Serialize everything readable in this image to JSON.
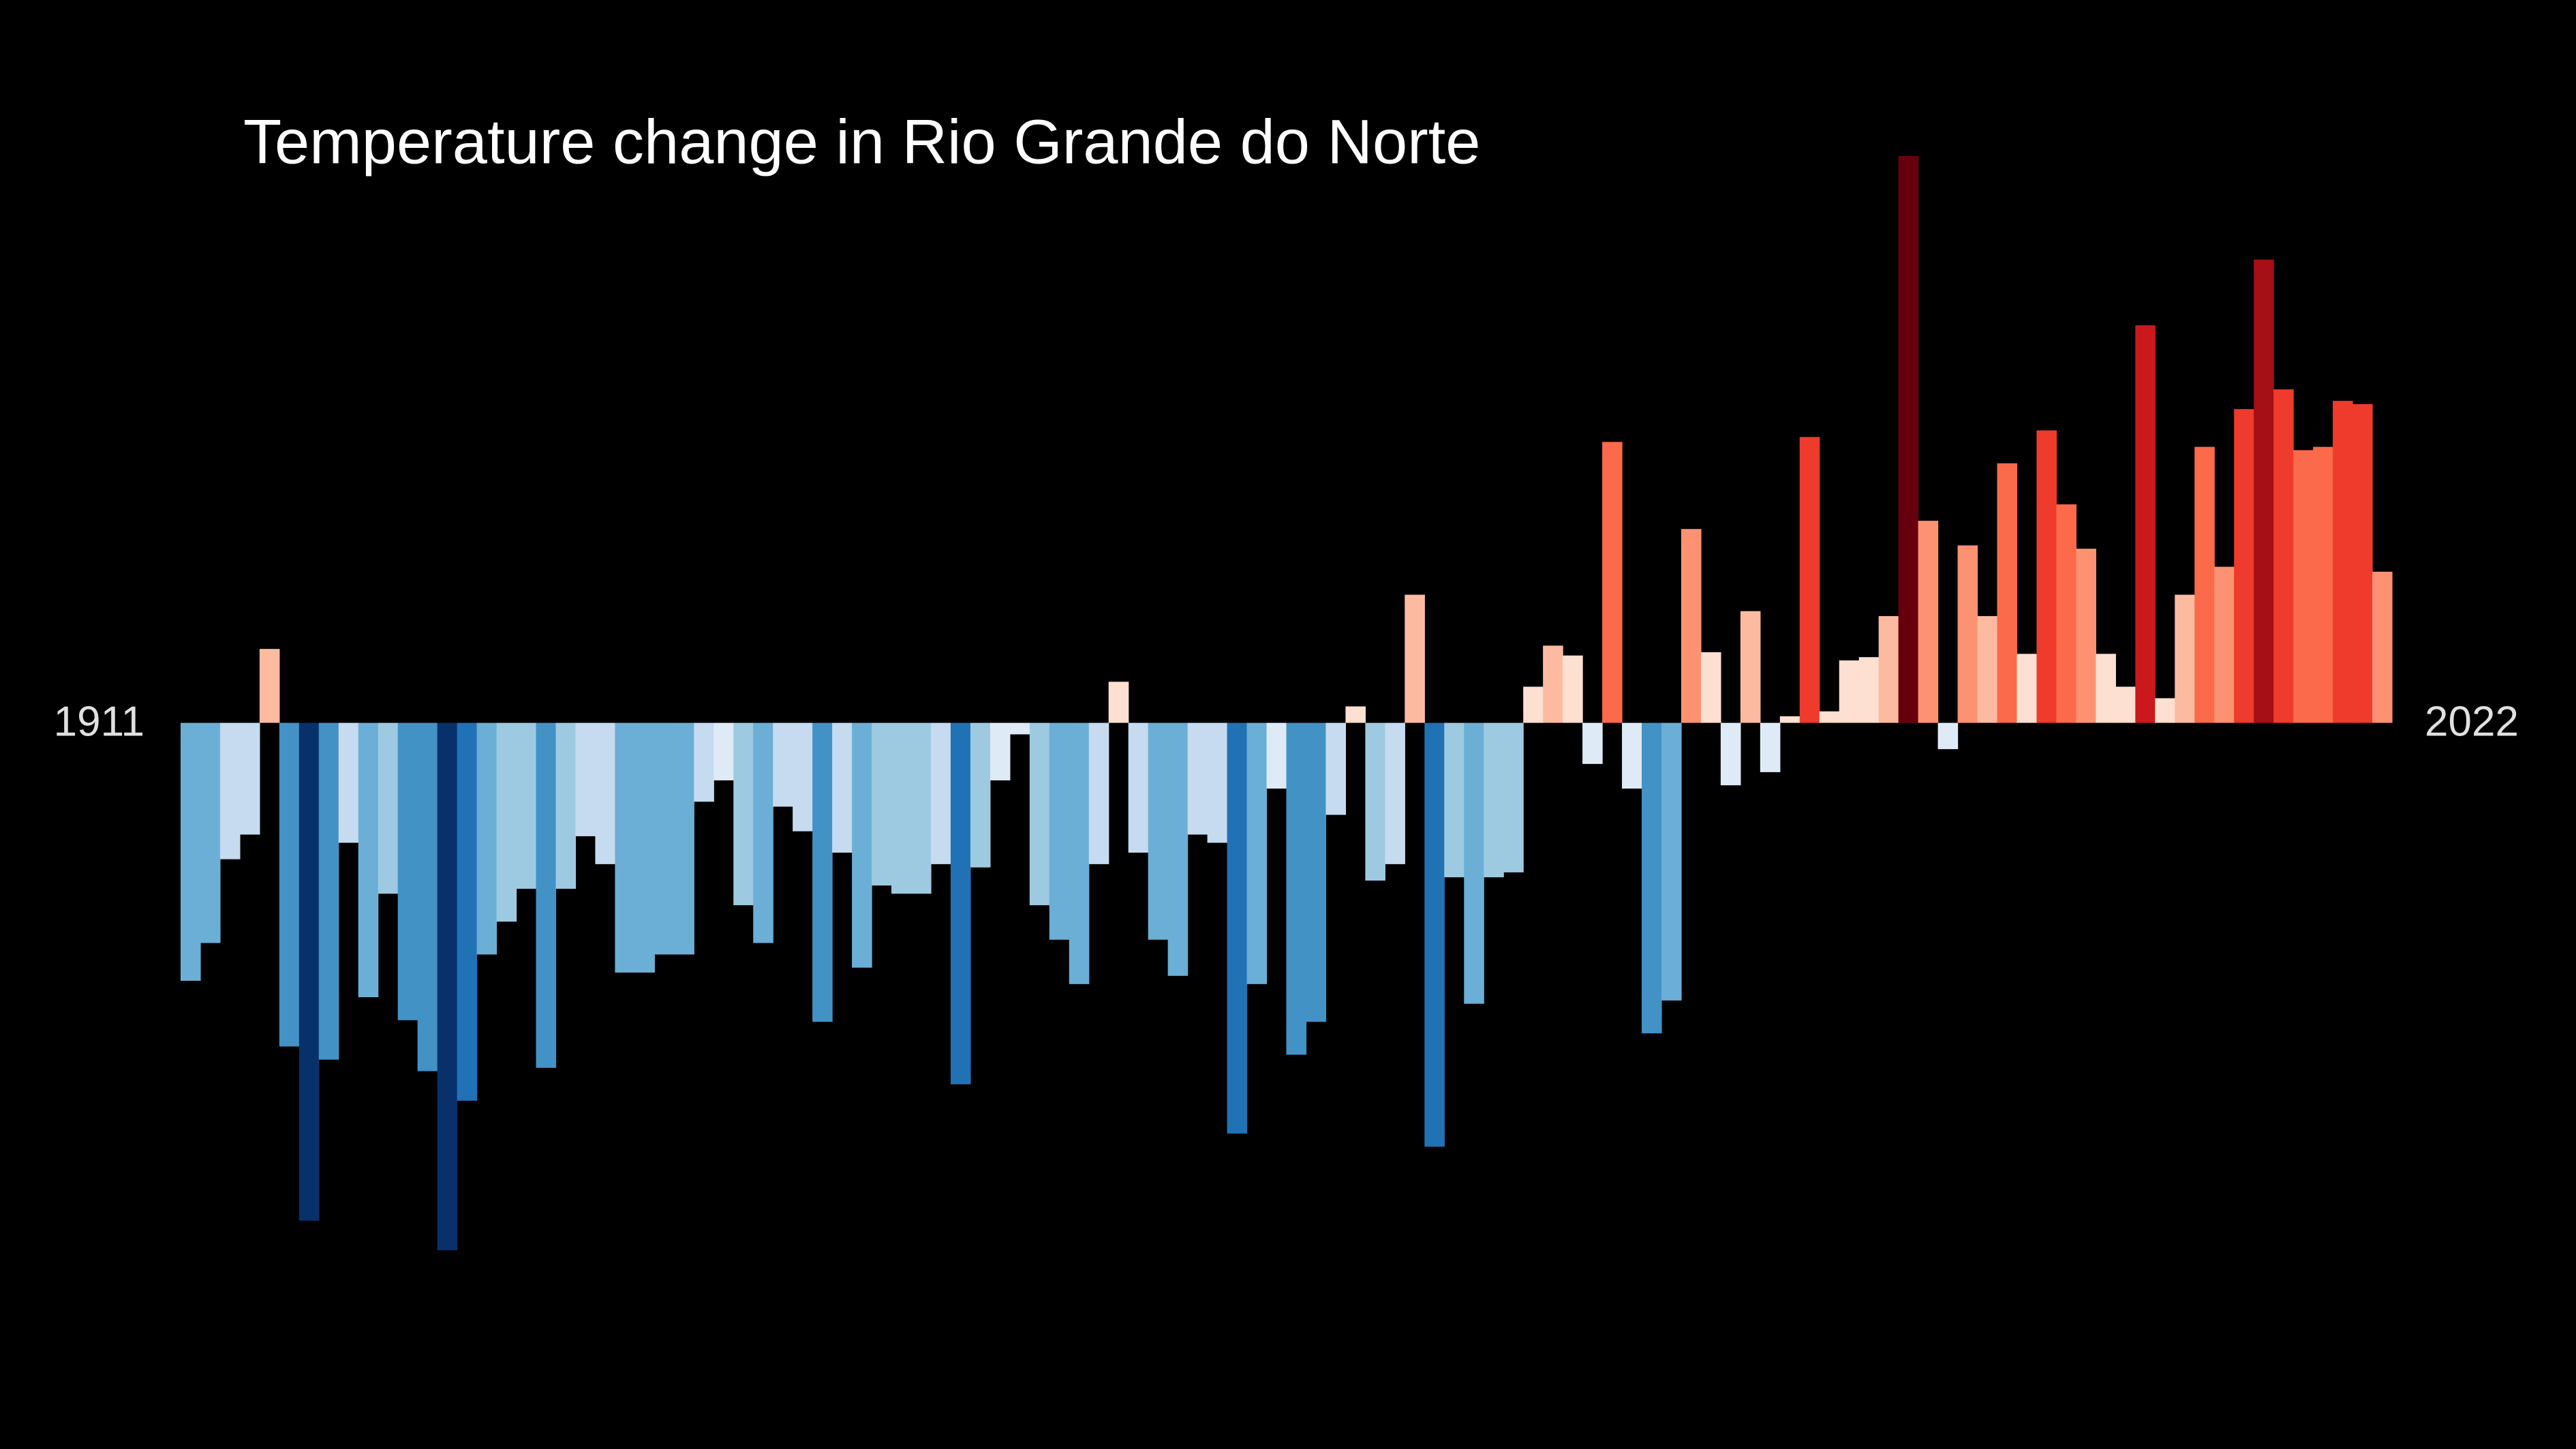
{
  "chart_data": {
    "type": "bar",
    "title": "Temperature change in Rio Grande do Norte",
    "x": [
      1911,
      1912,
      1913,
      1914,
      1915,
      1916,
      1917,
      1918,
      1919,
      1920,
      1921,
      1922,
      1923,
      1924,
      1925,
      1926,
      1927,
      1928,
      1929,
      1930,
      1931,
      1932,
      1933,
      1934,
      1935,
      1936,
      1937,
      1938,
      1939,
      1940,
      1941,
      1942,
      1943,
      1944,
      1945,
      1946,
      1947,
      1948,
      1949,
      1950,
      1951,
      1952,
      1953,
      1954,
      1955,
      1956,
      1957,
      1958,
      1959,
      1960,
      1961,
      1962,
      1963,
      1964,
      1965,
      1966,
      1967,
      1968,
      1969,
      1970,
      1971,
      1972,
      1973,
      1974,
      1975,
      1976,
      1977,
      1978,
      1979,
      1980,
      1981,
      1982,
      1983,
      1984,
      1985,
      1986,
      1987,
      1988,
      1989,
      1990,
      1991,
      1992,
      1993,
      1994,
      1995,
      1996,
      1997,
      1998,
      1999,
      2000,
      2001,
      2002,
      2003,
      2004,
      2005,
      2006,
      2007,
      2008,
      2009,
      2010,
      2011,
      2012,
      2013,
      2014,
      2015,
      2016,
      2017,
      2018,
      2019,
      2020,
      2021,
      2022
    ],
    "values": [
      -1.57,
      -1.34,
      -0.83,
      -0.68,
      0.45,
      -1.97,
      -3.03,
      -2.05,
      -0.73,
      -1.67,
      -1.04,
      -1.81,
      -2.12,
      -3.21,
      -2.3,
      -1.41,
      -1.21,
      -1.01,
      -2.1,
      -1.01,
      -0.69,
      -0.86,
      -1.52,
      -1.52,
      -1.41,
      -1.41,
      -0.48,
      -0.35,
      -1.11,
      -1.34,
      -0.51,
      -0.66,
      -1.82,
      -0.79,
      -1.49,
      -0.99,
      -1.04,
      -1.04,
      -0.86,
      -2.2,
      -0.88,
      -0.35,
      -0.07,
      -1.11,
      -1.32,
      -1.59,
      -0.86,
      0.25,
      -0.79,
      -1.32,
      -1.54,
      -0.68,
      -0.73,
      -2.5,
      -1.59,
      -0.4,
      -2.02,
      -1.82,
      -0.56,
      0.1,
      -0.96,
      -0.86,
      0.78,
      -2.58,
      -0.94,
      -1.71,
      -0.94,
      -0.91,
      0.22,
      0.47,
      0.41,
      -0.25,
      1.71,
      -0.4,
      -1.89,
      -1.69,
      1.18,
      0.43,
      -0.38,
      0.68,
      -0.3,
      0.04,
      1.74,
      0.07,
      0.38,
      0.4,
      0.65,
      3.45,
      1.23,
      -0.16,
      1.08,
      0.65,
      1.58,
      0.42,
      1.78,
      1.33,
      1.06,
      0.42,
      0.22,
      2.42,
      0.15,
      0.78,
      1.68,
      0.95,
      1.91,
      2.82,
      2.03,
      1.66,
      1.68,
      1.96,
      1.94,
      0.92
    ],
    "ylim": [
      -4.42,
      4.4
    ],
    "colormap": [
      "#08306b",
      "#08519c",
      "#2171b5",
      "#4292c6",
      "#6baed6",
      "#9ecae1",
      "#c6dbef",
      "#deebf7",
      "#fee0d2",
      "#fcbba1",
      "#fc9272",
      "#fb6a4a",
      "#ef3b2c",
      "#cb181d",
      "#a50f15",
      "#67000d"
    ],
    "background": "#000000"
  }
}
